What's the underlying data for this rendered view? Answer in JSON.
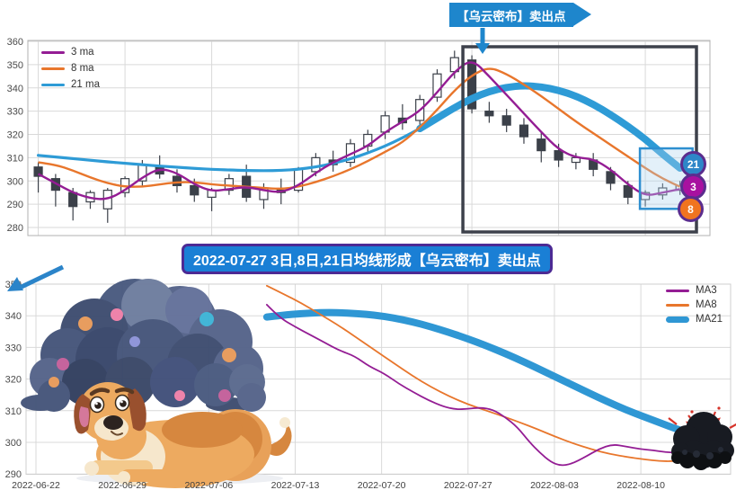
{
  "page": {
    "background": "#ffffff"
  },
  "annotations": {
    "top_callout": {
      "text": "【乌云密布】卖出点",
      "bg": "#1e86cc",
      "text_color": "#ffffff"
    },
    "mid_banner": {
      "text": "2022-07-27 3日,8日,21日均线形成【乌云密布】卖出点",
      "bg": "#1a7fd5",
      "border": "#4c2a94",
      "text_color": "#ffffff"
    },
    "badges": [
      {
        "label": "21",
        "bg": "#2e86c8",
        "ring": "#5b2d8e"
      },
      {
        "label": "3",
        "bg": "#a811a0",
        "ring": "#5b2d8e"
      },
      {
        "label": "8",
        "bg": "#f07420",
        "ring": "#5b2d8e"
      }
    ]
  },
  "chart_data": [
    {
      "type": "candlestick",
      "title": "",
      "legend_position": "top-left",
      "ylim": [
        278,
        362
      ],
      "yticks": [
        280,
        290,
        300,
        310,
        320,
        330,
        340,
        350,
        360
      ],
      "grid": true,
      "week_gridline_indices": [
        0,
        5,
        10,
        15,
        20,
        25,
        30,
        35
      ],
      "candle_format": [
        "date",
        "open",
        "high",
        "low",
        "close"
      ],
      "candles": [
        [
          "2022-06-22",
          306,
          308,
          295,
          302
        ],
        [
          "2022-06-23",
          301,
          303,
          289,
          296
        ],
        [
          "2022-06-24",
          295,
          297,
          283,
          289
        ],
        [
          "2022-06-27",
          291,
          296,
          288,
          295
        ],
        [
          "2022-06-28",
          288,
          297,
          282,
          296
        ],
        [
          "2022-06-29",
          295,
          302,
          293,
          301
        ],
        [
          "2022-06-30",
          300,
          309,
          298,
          307
        ],
        [
          "2022-07-01",
          306,
          311,
          301,
          303
        ],
        [
          "2022-07-04",
          302,
          305,
          295,
          298
        ],
        [
          "2022-07-05",
          298,
          301,
          291,
          294
        ],
        [
          "2022-07-06",
          293,
          297,
          287,
          296
        ],
        [
          "2022-07-07",
          296,
          303,
          294,
          301
        ],
        [
          "2022-07-08",
          302,
          307,
          291,
          293
        ],
        [
          "2022-07-11",
          292,
          299,
          288,
          297
        ],
        [
          "2022-07-12",
          296,
          301,
          290,
          295
        ],
        [
          "2022-07-13",
          296,
          306,
          295,
          305
        ],
        [
          "2022-07-14",
          304,
          312,
          302,
          310
        ],
        [
          "2022-07-15",
          309,
          313,
          304,
          307
        ],
        [
          "2022-07-18",
          308,
          318,
          306,
          316
        ],
        [
          "2022-07-19",
          315,
          322,
          312,
          320
        ],
        [
          "2022-07-20",
          321,
          330,
          318,
          328
        ],
        [
          "2022-07-21",
          327,
          333,
          322,
          325
        ],
        [
          "2022-07-22",
          326,
          337,
          324,
          335
        ],
        [
          "2022-07-25",
          336,
          348,
          334,
          346
        ],
        [
          "2022-07-26",
          347,
          356,
          344,
          353
        ],
        [
          "2022-07-27",
          352,
          354,
          329,
          331
        ],
        [
          "2022-07-28",
          330,
          334,
          325,
          328
        ],
        [
          "2022-07-29",
          328,
          331,
          321,
          324
        ],
        [
          "2022-08-01",
          324,
          327,
          316,
          319
        ],
        [
          "2022-08-02",
          318,
          321,
          308,
          313
        ],
        [
          "2022-08-03",
          313,
          316,
          306,
          309
        ],
        [
          "2022-08-04",
          308,
          312,
          305,
          310
        ],
        [
          "2022-08-05",
          309,
          312,
          302,
          305
        ],
        [
          "2022-08-08",
          304,
          306,
          296,
          299
        ],
        [
          "2022-08-09",
          298,
          300,
          290,
          293
        ],
        [
          "2022-08-10",
          292,
          296,
          289,
          295
        ],
        [
          "2022-08-11",
          294,
          299,
          292,
          297
        ],
        [
          "2022-08-12",
          296,
          300,
          294,
          298
        ]
      ],
      "series": [
        {
          "name": "3 ma",
          "color": "#941d94",
          "width": 2.4,
          "values": [
            303,
            299,
            295,
            292.5,
            292,
            296,
            301.5,
            305.5,
            303.5,
            298.5,
            295.5,
            296.5,
            297.5,
            296,
            295,
            298,
            303.5,
            308,
            311.5,
            315,
            321,
            325.5,
            330,
            338,
            347,
            352.5,
            345,
            337,
            329,
            321,
            313.5,
            310,
            309.5,
            305,
            298.5,
            293.5,
            295,
            296.5
          ]
        },
        {
          "name": "8 ma",
          "color": "#e8762c",
          "width": 2.4,
          "values": [
            308,
            307,
            304.5,
            301.5,
            299,
            297.5,
            297.5,
            298.5,
            299.5,
            299.5,
            298.5,
            298,
            297.5,
            297,
            296.5,
            297.5,
            299.5,
            302,
            305,
            308.5,
            312.5,
            316.5,
            323,
            330.5,
            339,
            345.5,
            349,
            346,
            341.5,
            336.5,
            331,
            325.5,
            320.5,
            315.5,
            310.5,
            305.5,
            301,
            297.5
          ]
        },
        {
          "name": "21 ma",
          "color": "#2e9bd6",
          "width": 3.2,
          "thick_width": 8,
          "thick_from_index": 22,
          "values": [
            311,
            310.3,
            309.6,
            308.9,
            308.2,
            307.6,
            307,
            306.4,
            305.9,
            305.4,
            305,
            304.7,
            304.5,
            304.4,
            304.5,
            305,
            306,
            307.5,
            309.5,
            312,
            315,
            318.5,
            322.5,
            327,
            331.5,
            335.5,
            338.5,
            340.3,
            341,
            340.5,
            339,
            336.5,
            333,
            328.5,
            323.5,
            318,
            311.5,
            305.5
          ]
        }
      ],
      "highlight_black_rect": {
        "start_date": "2022-07-27",
        "note": "zoom region outline"
      },
      "highlight_blue_box": {
        "start_date": "2022-08-10",
        "end_date": "2022-08-12",
        "value_range": [
          288,
          314
        ]
      }
    },
    {
      "type": "line",
      "title": "",
      "legend_position": "top-right",
      "ylim": [
        288,
        352
      ],
      "yticks": [
        290,
        300,
        310,
        320,
        330,
        340,
        350
      ],
      "grid": true,
      "xtick_labels": [
        "2022-06-22",
        "2022-06-29",
        "2022-07-06",
        "2022-07-13",
        "2022-07-20",
        "2022-07-27",
        "2022-08-03",
        "2022-08-10"
      ],
      "xtick_day_offsets": [
        0,
        7,
        14,
        21,
        28,
        35,
        42,
        49
      ],
      "point_format": [
        "days_since_2022-06-22",
        "value"
      ],
      "series": [
        {
          "name": "MA3",
          "color": "#941d94",
          "width": 1.8,
          "points": [
            [
              18.7,
              343.5
            ],
            [
              19.7,
              339.5
            ],
            [
              21,
              336.5
            ],
            [
              22.2,
              334
            ],
            [
              23.4,
              331.5
            ],
            [
              24.6,
              329
            ],
            [
              25.8,
              327.3
            ],
            [
              27,
              324
            ],
            [
              28.2,
              321.8
            ],
            [
              29.4,
              318.5
            ],
            [
              30.6,
              315.8
            ],
            [
              31.8,
              313.3
            ],
            [
              33,
              311.3
            ],
            [
              34,
              310.4
            ],
            [
              35,
              310.6
            ],
            [
              36,
              311
            ],
            [
              37,
              310.4
            ],
            [
              38,
              308
            ],
            [
              39,
              304.8
            ],
            [
              40,
              300
            ],
            [
              40.8,
              296.8
            ],
            [
              41.7,
              293.8
            ],
            [
              42.5,
              292.6
            ],
            [
              43.4,
              293.2
            ],
            [
              44.5,
              295.4
            ],
            [
              45.6,
              297.9
            ],
            [
              46.7,
              299.4
            ],
            [
              47.8,
              298.7
            ],
            [
              48.9,
              297.9
            ],
            [
              50,
              297.5
            ],
            [
              51,
              296.9
            ],
            [
              52,
              296.7
            ],
            [
              53,
              297.4
            ]
          ]
        },
        {
          "name": "MA8",
          "color": "#e8762c",
          "width": 1.8,
          "points": [
            [
              18.7,
              349.5
            ],
            [
              20,
              347
            ],
            [
              21.5,
              344
            ],
            [
              23,
              340.5
            ],
            [
              24.5,
              337
            ],
            [
              26,
              333
            ],
            [
              27.5,
              329
            ],
            [
              29,
              325
            ],
            [
              30.5,
              321
            ],
            [
              32,
              317.5
            ],
            [
              33.5,
              314.5
            ],
            [
              35,
              312
            ],
            [
              36.5,
              310
            ],
            [
              37.8,
              308.3
            ],
            [
              39.2,
              306.3
            ],
            [
              40.6,
              304.2
            ],
            [
              42,
              301.9
            ],
            [
              43.5,
              299.7
            ],
            [
              45,
              297.8
            ],
            [
              46.5,
              296.3
            ],
            [
              48,
              295.3
            ],
            [
              49.3,
              294.6
            ],
            [
              50.5,
              294.1
            ],
            [
              51.6,
              294
            ],
            [
              52.5,
              294.6
            ],
            [
              53.3,
              295.4
            ]
          ]
        },
        {
          "name": "MA21",
          "color": "#2f97d4",
          "width": 8,
          "points": [
            [
              18.7,
              339.6
            ],
            [
              20,
              340.2
            ],
            [
              21.5,
              340.7
            ],
            [
              23,
              341
            ],
            [
              24.5,
              341
            ],
            [
              26,
              340.7
            ],
            [
              27.5,
              340.2
            ],
            [
              29,
              339.3
            ],
            [
              30.5,
              338.1
            ],
            [
              32,
              336.5
            ],
            [
              33.5,
              334.7
            ],
            [
              35,
              332.7
            ],
            [
              36.5,
              330.5
            ],
            [
              38,
              328.1
            ],
            [
              39.5,
              325.5
            ],
            [
              41,
              322.7
            ],
            [
              42.5,
              319.9
            ],
            [
              44,
              317.1
            ],
            [
              45.5,
              314.3
            ],
            [
              47,
              311.6
            ],
            [
              48.5,
              309.2
            ],
            [
              50,
              307
            ],
            [
              51.2,
              305.2
            ],
            [
              52.2,
              303.8
            ],
            [
              53.1,
              302.8
            ]
          ]
        }
      ]
    }
  ],
  "icons": {
    "storm_cloud_icon": "black storm cloud with red lightning at end of MA lines",
    "banner_arrow_icon": "blue arrow from banner to bottom chart",
    "callout_arrow_icon": "blue arrow from callout to zoom region"
  },
  "illustration": {
    "description": "sad cartoon dog lying under a dark stormy cloud",
    "dog_color": "#edaa60",
    "cloud_color": "#46557a"
  }
}
